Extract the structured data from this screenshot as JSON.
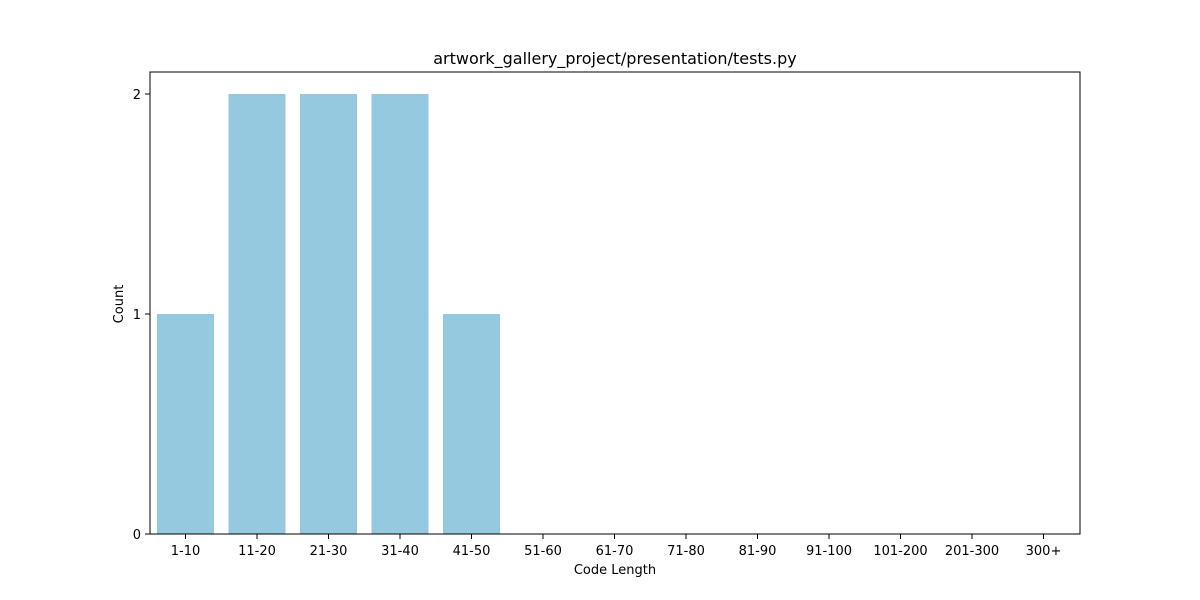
{
  "chart_data": {
    "type": "bar",
    "title": "artwork_gallery_project/presentation/tests.py",
    "xlabel": "Code Length",
    "ylabel": "Count",
    "categories": [
      "1-10",
      "11-20",
      "21-30",
      "31-40",
      "41-50",
      "51-60",
      "61-70",
      "71-80",
      "81-90",
      "91-100",
      "101-200",
      "201-300",
      "300+"
    ],
    "values": [
      1,
      2,
      2,
      2,
      1,
      0,
      0,
      0,
      0,
      0,
      0,
      0,
      0
    ],
    "ylim": [
      0,
      2.1
    ],
    "yticks": [
      0,
      1,
      2
    ],
    "yticklabels": [
      "0",
      "1",
      "2"
    ],
    "grid": false,
    "legend": null,
    "bar_color": "#95c9df"
  }
}
